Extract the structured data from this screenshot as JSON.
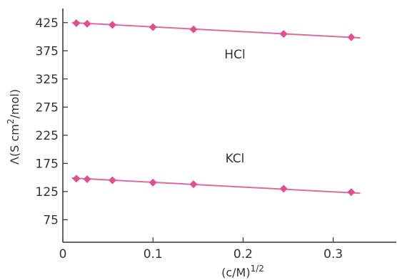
{
  "chart_data": {
    "type": "scatter",
    "xlabel": "(c/M)",
    "xlabel_superscript": "1/2",
    "ylabel": "Λ(S cm",
    "ylabel_superscript": "2",
    "ylabel_suffix": "/mol)",
    "xlim": [
      0,
      0.37
    ],
    "ylim": [
      35,
      450
    ],
    "xticks": [
      0,
      0.1,
      0.2,
      0.3
    ],
    "xtick_labels": [
      "0",
      "0.1",
      "0.2",
      "0.3"
    ],
    "yticks": [
      75,
      125,
      175,
      225,
      275,
      325,
      375,
      425
    ],
    "ytick_labels": [
      "75",
      "125",
      "175",
      "225",
      "275",
      "325",
      "375",
      "425"
    ],
    "grid": false,
    "marker_color": "#e0508f",
    "line_color": "#e06aa0",
    "series": [
      {
        "name": "HCl",
        "x": [
          0.015,
          0.027,
          0.055,
          0.1,
          0.145,
          0.245,
          0.32
        ],
        "y": [
          424,
          423,
          421,
          417,
          413,
          405,
          399
        ],
        "fit": {
          "x": [
            0.01,
            0.33
          ],
          "y": [
            425,
            398
          ]
        }
      },
      {
        "name": "KCl",
        "x": [
          0.015,
          0.027,
          0.055,
          0.1,
          0.145,
          0.245,
          0.32
        ],
        "y": [
          148,
          147,
          145,
          141,
          138,
          130,
          124
        ],
        "fit": {
          "x": [
            0.01,
            0.33
          ],
          "y": [
            149,
            122
          ]
        }
      }
    ]
  }
}
